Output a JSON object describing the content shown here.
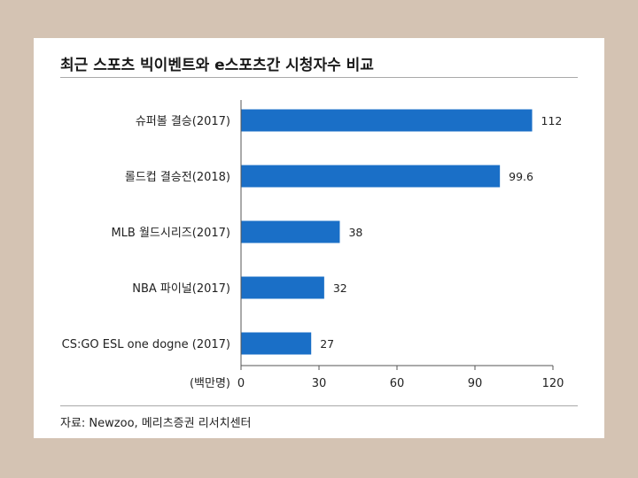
{
  "chart_data": {
    "type": "bar",
    "orientation": "horizontal",
    "title": "최근 스포츠 빅이벤트와 e스포츠간 시청자수 비교",
    "xlabel": "(백만명)",
    "categories": [
      "슈퍼볼 결승(2017)",
      "롤드컵 결승전(2018)",
      "MLB 월드시리즈(2017)",
      "NBA 파이널(2017)",
      "CS:GO ESL one dogne (2017)"
    ],
    "values": [
      112,
      99.6,
      38,
      32,
      27
    ],
    "value_labels": [
      "112",
      "99.6",
      "38",
      "32",
      "27"
    ],
    "xlim": [
      0,
      120
    ],
    "xticks": [
      "0",
      "30",
      "60",
      "90",
      "120"
    ],
    "bar_color": "#1a6fc7",
    "grid": false,
    "source": "자료: Newzoo, 메리츠증권 리서치센터"
  }
}
